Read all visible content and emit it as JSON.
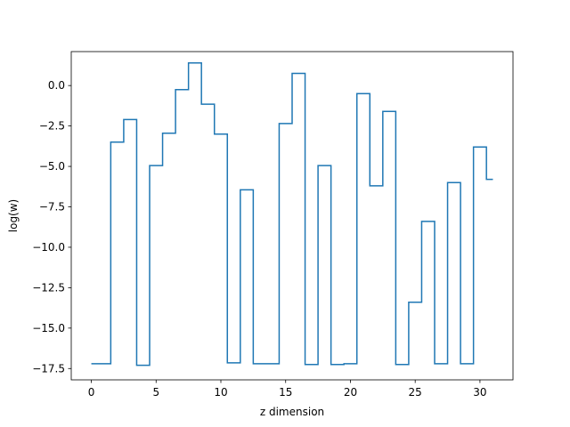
{
  "chart_data": {
    "type": "line",
    "drawstyle": "steps-mid",
    "title": "",
    "xlabel": "z dimension",
    "ylabel": "log(w)",
    "xlim": [
      -1.55,
      32.55
    ],
    "ylim": [
      -18.2,
      2.1
    ],
    "xticks": [
      0,
      5,
      10,
      15,
      20,
      25,
      30
    ],
    "xtick_labels": [
      "0",
      "5",
      "10",
      "15",
      "20",
      "25",
      "30"
    ],
    "yticks": [
      0.0,
      -2.5,
      -5.0,
      -7.5,
      -10.0,
      -12.5,
      -15.0,
      -17.5
    ],
    "ytick_labels": [
      "0.0",
      "−2.5",
      "−5.0",
      "−7.5",
      "−10.0",
      "−12.5",
      "−15.0",
      "−17.5"
    ],
    "grid": false,
    "color": "#1f77b4",
    "series": [
      {
        "x": [
          0,
          1,
          2,
          3,
          4,
          5,
          6,
          7,
          8,
          9,
          10,
          11,
          12,
          13,
          14,
          15,
          16,
          17,
          18,
          19,
          20,
          21,
          22,
          23,
          24,
          25,
          26,
          27,
          28,
          29,
          30,
          31
        ],
        "values": [
          -17.2,
          -17.2,
          -3.5,
          -2.1,
          -17.3,
          -4.95,
          -2.95,
          -0.25,
          1.4,
          -1.15,
          -3.0,
          -17.15,
          -6.45,
          -17.2,
          -17.2,
          -2.35,
          0.75,
          -17.25,
          -4.95,
          -17.25,
          -17.2,
          -0.5,
          -6.2,
          -1.6,
          -17.25,
          -13.4,
          -8.4,
          -17.2,
          -6.0,
          -17.2,
          -3.8,
          -5.8
        ]
      }
    ]
  }
}
